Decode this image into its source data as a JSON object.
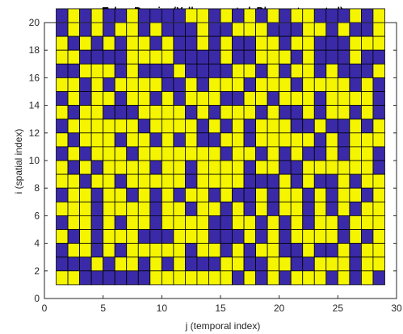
{
  "chart_data": {
    "type": "heatmap",
    "title": "Token Passing(Yellow: granted, Blue: not granted)",
    "xlabel": "j (temporal index)",
    "ylabel": "i (spatial index)",
    "xlim": [
      0,
      30
    ],
    "ylim": [
      0,
      20
    ],
    "xticks": [
      0,
      5,
      10,
      15,
      20,
      25,
      30
    ],
    "yticks": [
      0,
      2,
      4,
      6,
      8,
      10,
      12,
      14,
      16,
      18,
      20
    ],
    "colors": {
      "granted": "#f5f500",
      "not_granted": "#3a2aa8",
      "gridline": "#000000"
    },
    "cell_origin": {
      "j_start": 1,
      "i_start": 1
    },
    "rows_top_to_bottom_note": "each string is one spatial index i from 20 down to 1; characters are j = 1..28; 1 = granted (yellow), 0 = not granted (blue)",
    "rows": [
      "0101001000011010101011000101",
      "0101011010001001110001101001",
      "1010101101001010011011000111",
      "1100001111000010011101000100",
      "0011101000100001101011010001",
      "1101011110010111011101111010",
      "0101101101011100110111011110",
      "1011000111101011101001011010",
      "0111111011110101011100100101",
      "1011101101010011011111010111",
      "0101110111111101101010010110",
      "1010111101101111011001111110",
      "1101101111101111000101001011",
      "0110110101011010010110101101",
      "1110111101101101010110101011",
      "0110101101111001101010110111",
      "1010111000111000101011110101",
      "0110101111101101011001001011",
      "0001011010100011001100111011",
      "1100000011111110101011101010"
    ]
  }
}
